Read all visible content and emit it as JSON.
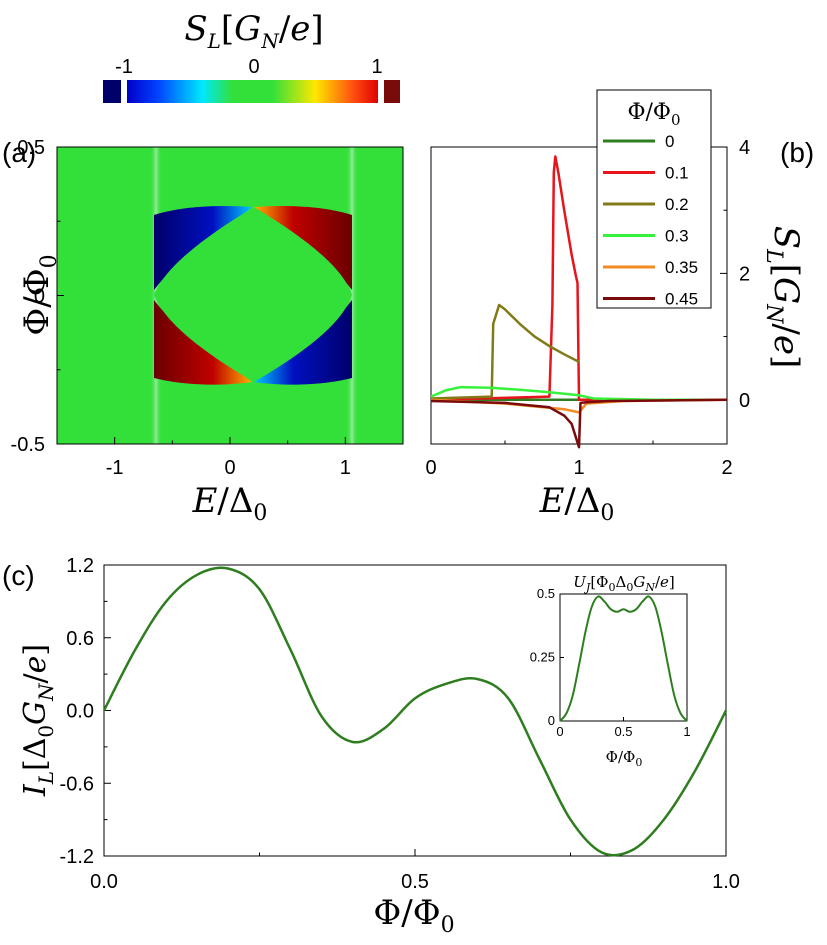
{
  "colors": {
    "dark_green": "#2e7d1f",
    "red": "#e8141b",
    "olive": "#807a19",
    "light_green": "#36f23b",
    "orange": "#f28b22",
    "dark_red": "#7a0b0b",
    "heat_bg": "#33e03a"
  },
  "colorbar": {
    "title": "S_L[G_N/e]",
    "ticks": [
      "-1",
      "0",
      "1"
    ]
  },
  "panels": {
    "a": "(a)",
    "b": "(b)",
    "c": "(c)"
  },
  "chart_data": [
    {
      "id": "a",
      "type": "heatmap",
      "title": "",
      "xlabel": "E/Δ0",
      "ylabel": "Φ/Φ0",
      "xlim": [
        -1.5,
        1.5
      ],
      "ylim": [
        -0.5,
        0.5
      ],
      "x_ticks": [
        "-1",
        "0",
        "1"
      ],
      "y_ticks": [
        "0.5",
        "0",
        "-0.5"
      ],
      "value_label": "S_L[G_N/e]",
      "value_range": [
        -1,
        1
      ]
    },
    {
      "id": "b",
      "type": "line",
      "xlabel": "E/Δ0",
      "ylabel": "S_L[G_N/e]",
      "xlim": [
        0,
        2
      ],
      "ylim": [
        -0.7,
        4
      ],
      "x_ticks": [
        "0",
        "1",
        "2"
      ],
      "y_ticks": [
        "0",
        "2",
        "4"
      ],
      "legend_title": "Φ/Φ0",
      "legend_position": "top-right",
      "series": [
        {
          "name": "0",
          "x": [
            0,
            2
          ],
          "y": [
            0,
            0
          ]
        },
        {
          "name": "0.1",
          "x": [
            0,
            0.8,
            0.82,
            0.83,
            0.84,
            0.86,
            0.9,
            0.95,
            0.98,
            0.99,
            1.0,
            1.02,
            2.0
          ],
          "y": [
            0,
            0.05,
            1.5,
            3.6,
            3.85,
            3.6,
            3.0,
            2.3,
            1.95,
            1.85,
            0.0,
            0.0,
            0.0
          ]
        },
        {
          "name": "0.2",
          "x": [
            0,
            0.41,
            0.42,
            0.46,
            0.5,
            0.6,
            0.7,
            0.8,
            0.9,
            1.0
          ],
          "y": [
            0.02,
            0.05,
            1.2,
            1.5,
            1.43,
            1.2,
            1.0,
            0.85,
            0.72,
            0.6
          ]
        },
        {
          "name": "0.3",
          "x": [
            0,
            0.1,
            0.2,
            0.4,
            0.6,
            0.8,
            1.0,
            1.1,
            1.5,
            2.0
          ],
          "y": [
            0.05,
            0.15,
            0.2,
            0.19,
            0.16,
            0.12,
            0.07,
            0.02,
            0.0,
            0.0
          ]
        },
        {
          "name": "0.35",
          "x": [
            0,
            0.5,
            0.9,
            1.0,
            1.05,
            1.3,
            2.0
          ],
          "y": [
            0,
            -0.06,
            -0.15,
            -0.2,
            -0.06,
            -0.02,
            0
          ]
        },
        {
          "name": "0.45",
          "x": [
            0,
            0.5,
            0.8,
            0.9,
            0.95,
            0.98,
            1.0,
            1.01,
            1.05,
            1.2,
            2.0
          ],
          "y": [
            -0.02,
            -0.05,
            -0.12,
            -0.25,
            -0.38,
            -0.6,
            -0.75,
            -0.05,
            -0.04,
            -0.02,
            0
          ]
        }
      ]
    },
    {
      "id": "c",
      "type": "line",
      "xlabel": "Φ/Φ0",
      "ylabel": "I_L[Δ0 G_N/e]",
      "xlim": [
        0,
        1
      ],
      "ylim": [
        -1.2,
        1.2
      ],
      "x_ticks": [
        "0.0",
        "0.5",
        "1.0"
      ],
      "y_ticks": [
        "1.2",
        "0.6",
        "0.0",
        "-0.6",
        "-1.2"
      ],
      "series": [
        {
          "name": "I_L",
          "x": [
            0,
            0.05,
            0.1,
            0.15,
            0.2,
            0.25,
            0.3,
            0.35,
            0.4,
            0.45,
            0.5,
            0.55,
            0.6,
            0.65,
            0.7,
            0.75,
            0.8,
            0.85,
            0.9,
            0.95,
            1.0
          ],
          "y": [
            0,
            0.5,
            0.9,
            1.12,
            1.17,
            1.0,
            0.5,
            -0.05,
            -0.26,
            -0.15,
            0.1,
            0.22,
            0.26,
            0.1,
            -0.4,
            -0.9,
            -1.17,
            -1.15,
            -0.9,
            -0.5,
            0
          ]
        }
      ]
    },
    {
      "id": "c-inset",
      "type": "line",
      "title": "U_J[Φ0 Δ0 G_N/e]",
      "xlabel": "Φ/Φ0",
      "xlim": [
        0,
        1
      ],
      "ylim": [
        0,
        0.5
      ],
      "x_ticks": [
        "0",
        "0.5",
        "1"
      ],
      "y_ticks": [
        "0.5",
        "0.25",
        "0"
      ],
      "series": [
        {
          "name": "U_J",
          "x": [
            0,
            0.05,
            0.1,
            0.15,
            0.2,
            0.25,
            0.3,
            0.35,
            0.4,
            0.45,
            0.5,
            0.55,
            0.6,
            0.65,
            0.7,
            0.75,
            0.8,
            0.85,
            0.9,
            0.95,
            1.0
          ],
          "y": [
            0,
            0.03,
            0.1,
            0.22,
            0.35,
            0.45,
            0.49,
            0.47,
            0.44,
            0.43,
            0.44,
            0.43,
            0.44,
            0.47,
            0.49,
            0.45,
            0.35,
            0.22,
            0.1,
            0.03,
            0
          ]
        }
      ]
    }
  ]
}
